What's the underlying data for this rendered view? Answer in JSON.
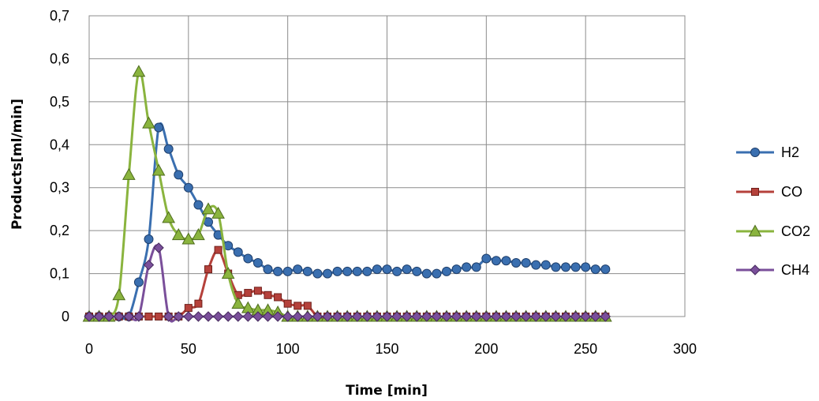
{
  "chart_data": {
    "type": "line",
    "title": "",
    "xlabel": "Time [min]",
    "ylabel": "Products[ml/min]",
    "xlim": [
      0,
      300
    ],
    "ylim": [
      0,
      0.7
    ],
    "xticks": [
      0,
      50,
      100,
      150,
      200,
      250,
      300
    ],
    "xtick_labels": [
      "0",
      "50",
      "100",
      "150",
      "200",
      "250",
      "300"
    ],
    "yticks": [
      0,
      0.1,
      0.2,
      0.3,
      0.4,
      0.5,
      0.6,
      0.7
    ],
    "ytick_labels": [
      "0",
      "0,1",
      "0,2",
      "0,3",
      "0,4",
      "0,5",
      "0,6",
      "0,7"
    ],
    "grid": true,
    "legend_position": "right",
    "series": [
      {
        "name": "H2",
        "color": "#3a6fb0",
        "marker": "circle",
        "x": [
          0,
          5,
          10,
          15,
          20,
          25,
          30,
          35,
          40,
          45,
          50,
          55,
          60,
          65,
          70,
          75,
          80,
          85,
          90,
          95,
          100,
          105,
          110,
          115,
          120,
          125,
          130,
          135,
          140,
          145,
          150,
          155,
          160,
          165,
          170,
          175,
          180,
          185,
          190,
          195,
          200,
          205,
          210,
          215,
          220,
          225,
          230,
          235,
          240,
          245,
          250,
          255,
          260
        ],
        "y": [
          0,
          0,
          0,
          0,
          0,
          0.08,
          0.18,
          0.44,
          0.39,
          0.33,
          0.3,
          0.26,
          0.22,
          0.19,
          0.165,
          0.15,
          0.135,
          0.125,
          0.11,
          0.105,
          0.105,
          0.11,
          0.105,
          0.1,
          0.1,
          0.105,
          0.105,
          0.105,
          0.105,
          0.11,
          0.11,
          0.105,
          0.11,
          0.105,
          0.1,
          0.1,
          0.105,
          0.11,
          0.115,
          0.115,
          0.135,
          0.13,
          0.13,
          0.125,
          0.125,
          0.12,
          0.12,
          0.115,
          0.115,
          0.115,
          0.115,
          0.11,
          0.11
        ]
      },
      {
        "name": "CO",
        "color": "#b5413b",
        "marker": "square",
        "x": [
          0,
          5,
          10,
          15,
          20,
          25,
          30,
          35,
          40,
          45,
          50,
          55,
          60,
          65,
          70,
          75,
          80,
          85,
          90,
          95,
          100,
          105,
          110,
          115,
          120,
          125,
          130,
          135,
          140,
          145,
          150,
          155,
          160,
          165,
          170,
          175,
          180,
          185,
          190,
          195,
          200,
          205,
          210,
          215,
          220,
          225,
          230,
          235,
          240,
          245,
          250,
          255,
          260
        ],
        "y": [
          0,
          0,
          0,
          0,
          0,
          0,
          0,
          0,
          0,
          0,
          0.02,
          0.03,
          0.11,
          0.155,
          0.1,
          0.05,
          0.055,
          0.06,
          0.05,
          0.045,
          0.03,
          0.025,
          0.025,
          0,
          0,
          0,
          0,
          0,
          0,
          0,
          0,
          0,
          0,
          0,
          0,
          0,
          0,
          0,
          0,
          0,
          0,
          0,
          0,
          0,
          0,
          0,
          0,
          0,
          0,
          0,
          0,
          0,
          0
        ]
      },
      {
        "name": "CO2",
        "color": "#8ab43e",
        "marker": "triangle",
        "x": [
          0,
          5,
          10,
          15,
          20,
          25,
          30,
          35,
          40,
          45,
          50,
          55,
          60,
          65,
          70,
          75,
          80,
          85,
          90,
          95,
          100,
          105,
          110,
          115,
          120,
          125,
          130,
          135,
          140,
          145,
          150,
          155,
          160,
          165,
          170,
          175,
          180,
          185,
          190,
          195,
          200,
          205,
          210,
          215,
          220,
          225,
          230,
          235,
          240,
          245,
          250,
          255,
          260
        ],
        "y": [
          0,
          0,
          0,
          0.05,
          0.33,
          0.57,
          0.45,
          0.34,
          0.23,
          0.19,
          0.18,
          0.19,
          0.25,
          0.24,
          0.1,
          0.03,
          0.02,
          0.015,
          0.015,
          0.01,
          0,
          0,
          0,
          0,
          0,
          0,
          0,
          0,
          0,
          0,
          0,
          0,
          0,
          0,
          0,
          0,
          0,
          0,
          0,
          0,
          0,
          0,
          0,
          0,
          0,
          0,
          0,
          0,
          0,
          0,
          0,
          0,
          0
        ]
      },
      {
        "name": "CH4",
        "color": "#7a4f9a",
        "marker": "diamond",
        "x": [
          0,
          5,
          10,
          15,
          20,
          25,
          30,
          35,
          40,
          45,
          50,
          55,
          60,
          65,
          70,
          75,
          80,
          85,
          90,
          95,
          100,
          105,
          110,
          115,
          120,
          125,
          130,
          135,
          140,
          145,
          150,
          155,
          160,
          165,
          170,
          175,
          180,
          185,
          190,
          195,
          200,
          205,
          210,
          215,
          220,
          225,
          230,
          235,
          240,
          245,
          250,
          255,
          260
        ],
        "y": [
          0,
          0,
          0,
          0,
          0,
          0,
          0.12,
          0.16,
          0,
          0,
          0,
          0,
          0,
          0,
          0,
          0,
          0,
          0,
          0,
          0,
          0,
          0,
          0,
          0,
          0,
          0,
          0,
          0,
          0,
          0,
          0,
          0,
          0,
          0,
          0,
          0,
          0,
          0,
          0,
          0,
          0,
          0,
          0,
          0,
          0,
          0,
          0,
          0,
          0,
          0,
          0,
          0,
          0
        ]
      }
    ]
  }
}
